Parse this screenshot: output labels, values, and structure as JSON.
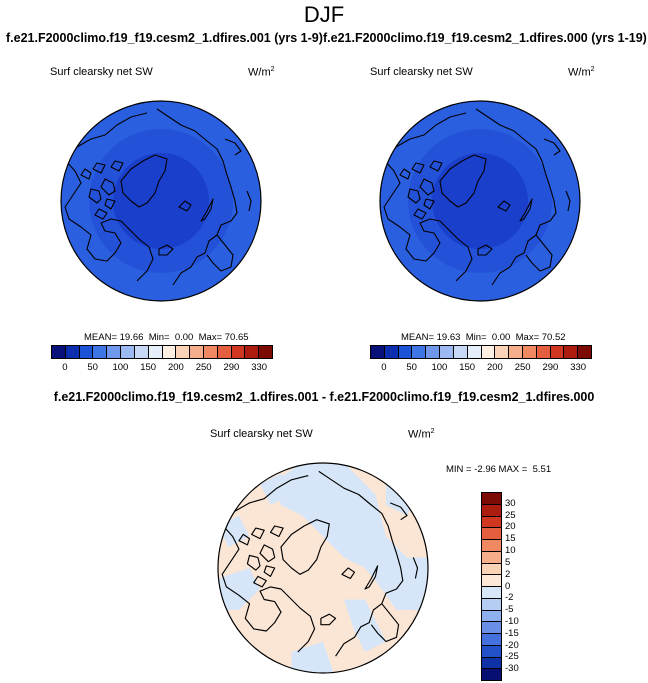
{
  "season": "DJF",
  "case_left": "f.e21.F2000climo.f19_f19.cesm2_1.dfires.001 (yrs 1-9)",
  "case_right": "f.e21.F2000climo.f19_f19.cesm2_1.dfires.000 (yrs 1-19)",
  "diff_title": "f.e21.F2000climo.f19_f19.cesm2_1.dfires.001 - f.e21.F2000climo.f19_f19.cesm2_1.dfires.000",
  "variable": "Surf clearsky net SW",
  "units_base": "W/m",
  "units_exp": "2",
  "panel_left": {
    "mean": "19.66",
    "min": "0.00",
    "max": "70.65"
  },
  "panel_right": {
    "mean": "19.63",
    "min": "0.00",
    "max": "70.52"
  },
  "panel_diff": {
    "min": "-2.96",
    "max": "5.51"
  },
  "labels": {
    "mean": "MEAN=",
    "min": "Min=",
    "max": "Max=",
    "min_upper": "MIN =",
    "max_upper": "MAX ="
  },
  "colorbar_main": {
    "colors": [
      "#08107a",
      "#0b2fae",
      "#1c52d6",
      "#3f75e4",
      "#6f98ec",
      "#9db9f1",
      "#c6d8f6",
      "#e6eef9",
      "#fdefe2",
      "#fad2b6",
      "#f6ae8a",
      "#f08862",
      "#e55e3e",
      "#cf3720",
      "#ac1d10",
      "#7c0a05"
    ],
    "tick_labels": [
      "0",
      "50",
      "100",
      "150",
      "200",
      "250",
      "290",
      "330"
    ]
  },
  "colorbar_diff": {
    "colors": [
      "#7c0a05",
      "#ac1d10",
      "#cf3720",
      "#e55e3e",
      "#f08862",
      "#f6ae8a",
      "#fad2b6",
      "#fde8d8",
      "#d8e7f8",
      "#b6cdf3",
      "#8eb0ee",
      "#6990e6",
      "#4571de",
      "#2250c9",
      "#0f33a6",
      "#070f72"
    ],
    "tick_labels": [
      "30",
      "25",
      "20",
      "15",
      "10",
      "5",
      "2",
      "0",
      "-2",
      "-5",
      "-10",
      "-15",
      "-20",
      "-25",
      "-30"
    ]
  },
  "map_colors": {
    "outer_ocean": "#2a5fe0",
    "mid_ocean": "#2352d8",
    "polar": "#1a3fcb",
    "diff_pos": "#fbe6d6",
    "diff_neg": "#d6e6f8",
    "diff_strong_pos": "#f6c9aa"
  }
}
